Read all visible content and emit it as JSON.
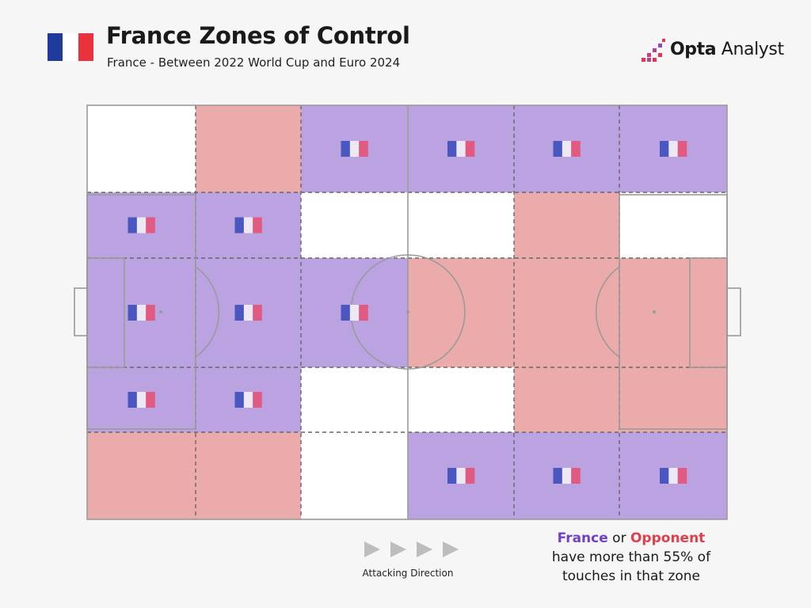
{
  "title": "France Zones of Control",
  "subtitle": "France - Between 2022 World Cup and Euro 2024",
  "logo": {
    "bold": "Opta",
    "rest": " Analyst"
  },
  "colors": {
    "france": "#bba3e2",
    "opponent": "#ebabab",
    "neutral": "#ffffff",
    "france_text": "#7040c8",
    "opponent_text": "#e0404a",
    "flag_blue": "#1f3a9a",
    "flag_white": "#ffffff",
    "flag_red": "#e8323c"
  },
  "icons": {
    "team_flag": "france-flag-icon",
    "direction": "play-arrow-icon"
  },
  "attacking_direction": "Attacking Direction",
  "legend": {
    "team": "France",
    "connector": " or ",
    "opponent": "Opponent",
    "line2": "have more than 55% of",
    "line3": "touches in that zone"
  },
  "chart_data": {
    "type": "heatmap",
    "title": "France Zones of Control",
    "subtitle": "France - Between 2022 World Cup and Euro 2024",
    "threshold_percent": 55,
    "attacking_direction": "left-to-right",
    "columns": 6,
    "rows": 5,
    "zones": [
      [
        "neutral",
        "opponent",
        "france",
        "france",
        "france",
        "france"
      ],
      [
        "france",
        "france",
        "neutral",
        "neutral",
        "opponent",
        "neutral"
      ],
      [
        "france",
        "france",
        "france",
        "opponent",
        "opponent",
        "opponent"
      ],
      [
        "france",
        "france",
        "neutral",
        "neutral",
        "opponent",
        "opponent"
      ],
      [
        "opponent",
        "opponent",
        "neutral",
        "france",
        "france",
        "france"
      ]
    ]
  }
}
